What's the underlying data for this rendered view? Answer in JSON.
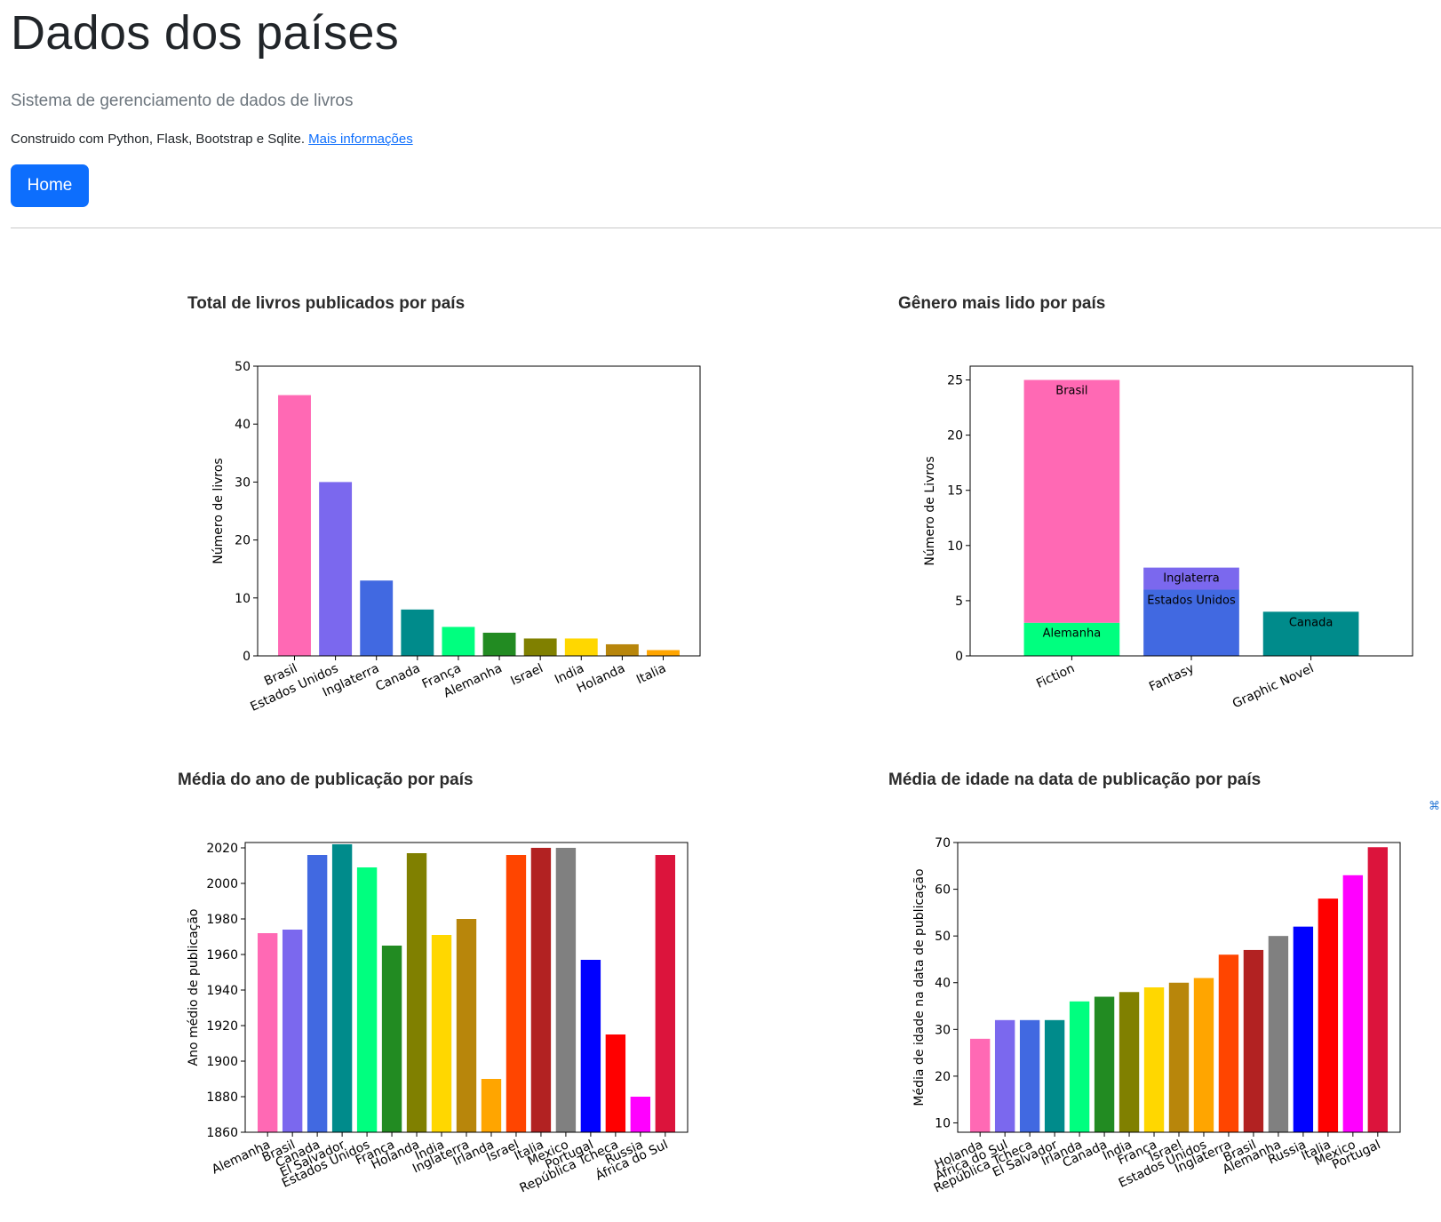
{
  "header": {
    "title": "Dados dos países",
    "lead": "Sistema de gerenciamento de dados de livros",
    "built_with": "Construido com Python, Flask, Bootstrap e Sqlite.",
    "more_info_link": "Mais informações",
    "home_button": "Home"
  },
  "colors": {
    "primary": "#0d6efd",
    "muted": "#6c757d"
  },
  "charts": [
    {
      "title": "Total de livros publicados por país"
    },
    {
      "title": "Gênero mais lido por país"
    },
    {
      "title": "Média do ano de publicação por país"
    },
    {
      "title": "Média de idade na data de publicação por país"
    }
  ],
  "chart_data": [
    {
      "type": "bar",
      "title": "Total de livros publicados por país",
      "ylabel": "Número de livros",
      "xlabel": "",
      "ylim": [
        0,
        50
      ],
      "yticks": [
        0,
        10,
        20,
        30,
        40,
        50
      ],
      "grid": false,
      "categories": [
        "Brasil",
        "Estados Unidos",
        "Inglaterra",
        "Canada",
        "França",
        "Alemanha",
        "Israel",
        "India",
        "Holanda",
        "Italia"
      ],
      "values": [
        45,
        30,
        13,
        8,
        5,
        4,
        3,
        3,
        2,
        1
      ],
      "colors": [
        "#ff69b4",
        "#7b68ee",
        "#4169e1",
        "#008b8b",
        "#00ff7f",
        "#228b22",
        "#808000",
        "#ffd700",
        "#b8860b",
        "#ffa500"
      ]
    },
    {
      "type": "bar",
      "stacked": true,
      "title": "Gênero mais lido por país",
      "ylabel": "Número de Livros",
      "xlabel": "",
      "ylim": [
        0,
        26.25
      ],
      "yticks": [
        0,
        5,
        10,
        15,
        20,
        25
      ],
      "grid": false,
      "categories": [
        "Fiction",
        "Fantasy",
        "Graphic Novel"
      ],
      "segments": [
        {
          "category": "Fiction",
          "country": "Alemanha",
          "value": 3,
          "color": "#00ff7f"
        },
        {
          "category": "Fiction",
          "country": "Brasil",
          "value": 22,
          "color": "#ff69b4"
        },
        {
          "category": "Fantasy",
          "country": "Estados Unidos",
          "value": 6,
          "color": "#4169e1"
        },
        {
          "category": "Fantasy",
          "country": "Inglaterra",
          "value": 2,
          "color": "#7b68ee"
        },
        {
          "category": "Graphic Novel",
          "country": "Canada",
          "value": 4,
          "color": "#008b8b"
        }
      ]
    },
    {
      "type": "bar",
      "title": "Média do ano de publicação por país",
      "ylabel": "Ano médio de publicação",
      "xlabel": "",
      "ylim": [
        1860,
        2023
      ],
      "yticks": [
        1860,
        1880,
        1900,
        1920,
        1940,
        1960,
        1980,
        2000,
        2020
      ],
      "grid": false,
      "categories": [
        "Alemanha",
        "Brasil",
        "Canada",
        "El Salvador",
        "Estados Unidos",
        "França",
        "Holanda",
        "India",
        "Inglaterra",
        "Irlanda",
        "Israel",
        "Italia",
        "Mexico",
        "Portugal",
        "República Tcheca",
        "Russia",
        "África do Sul"
      ],
      "values": [
        1972,
        1974,
        2016,
        2022,
        2009,
        1965,
        2017,
        1971,
        1980,
        1890,
        2016,
        2020,
        2020,
        1957,
        1915,
        1880,
        2016
      ],
      "colors": [
        "#ff69b4",
        "#7b68ee",
        "#4169e1",
        "#008b8b",
        "#00ff7f",
        "#228b22",
        "#808000",
        "#ffd700",
        "#b8860b",
        "#ffa500",
        "#ff4500",
        "#b22222",
        "#808080",
        "#0000ff",
        "#ff0000",
        "#ff00ff",
        "#dc143c"
      ]
    },
    {
      "type": "bar",
      "title": "Média de idade na data de publicação por país",
      "ylabel": "Média de idade na data de publicação",
      "xlabel": "",
      "ylim": [
        8,
        70
      ],
      "yticks": [
        10,
        20,
        30,
        40,
        50,
        60,
        70
      ],
      "grid": false,
      "categories": [
        "Holanda",
        "África do Sul",
        "República Tcheca",
        "El Salvador",
        "Irlanda",
        "Canada",
        "India",
        "França",
        "Israel",
        "Estados Unidos",
        "Inglaterra",
        "Brasil",
        "Alemanha",
        "Russia",
        "Italia",
        "Mexico",
        "Portugal"
      ],
      "values": [
        28,
        32,
        32,
        32,
        36,
        37,
        38,
        39,
        40,
        41,
        46,
        47,
        50,
        52,
        58,
        63,
        69
      ],
      "colors": [
        "#ff69b4",
        "#7b68ee",
        "#4169e1",
        "#008b8b",
        "#00ff7f",
        "#228b22",
        "#808000",
        "#ffd700",
        "#b8860b",
        "#ffa500",
        "#ff4500",
        "#b22222",
        "#808080",
        "#0000ff",
        "#ff0000",
        "#ff00ff",
        "#dc143c"
      ]
    }
  ]
}
